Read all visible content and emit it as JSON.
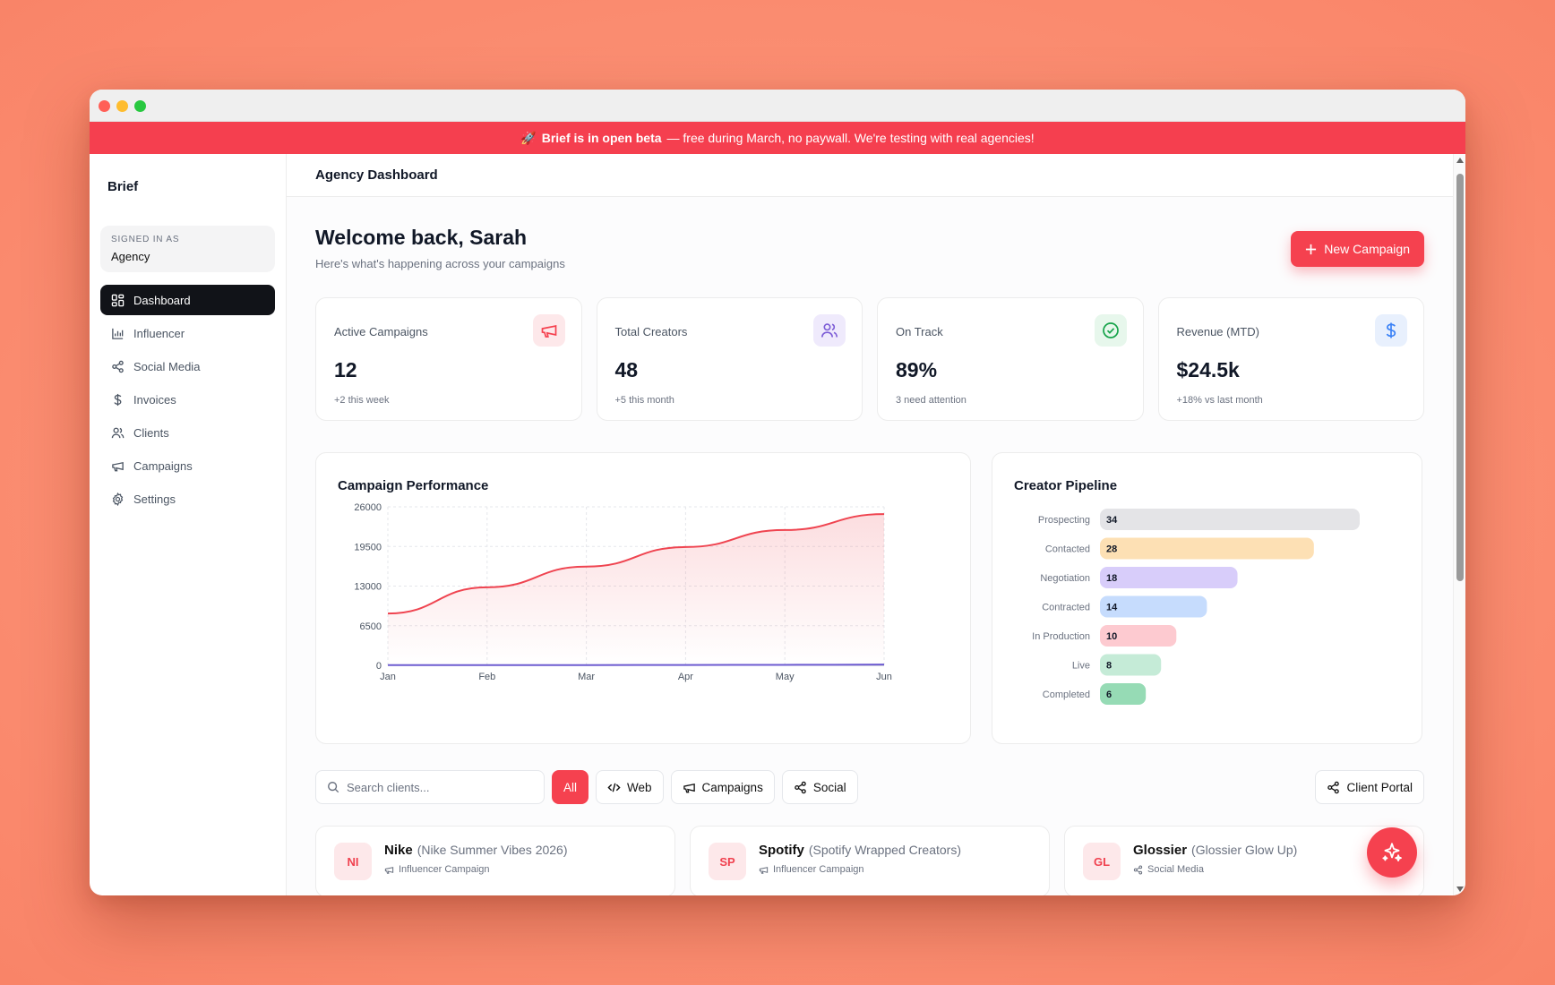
{
  "banner": {
    "icon": "rocket-icon",
    "emoji": "🚀",
    "bold": "Brief is in open beta",
    "rest": "— free during March, no paywall. We're testing with real agencies!"
  },
  "sidebar": {
    "brand": "Brief",
    "signed_caption": "SIGNED IN AS",
    "signed_role": "Agency",
    "items": [
      {
        "label": "Dashboard",
        "icon": "dashboard-icon",
        "active": true
      },
      {
        "label": "Influencer",
        "icon": "bar-chart-icon"
      },
      {
        "label": "Social Media",
        "icon": "share-icon"
      },
      {
        "label": "Invoices",
        "icon": "dollar-icon"
      },
      {
        "label": "Clients",
        "icon": "users-icon"
      },
      {
        "label": "Campaigns",
        "icon": "megaphone-icon"
      },
      {
        "label": "Settings",
        "icon": "gear-icon"
      }
    ]
  },
  "header": {
    "title": "Agency Dashboard"
  },
  "welcome": {
    "title": "Welcome back, Sarah",
    "subtitle": "Here's what's happening across your campaigns",
    "new_button": "New Campaign"
  },
  "stats": [
    {
      "label": "Active Campaigns",
      "value": "12",
      "sub": "+2 this week",
      "icon": "megaphone-icon",
      "color": "#f5414f",
      "bg": "#fde8ea"
    },
    {
      "label": "Total Creators",
      "value": "48",
      "sub": "+5 this month",
      "icon": "users-icon",
      "color": "#7c5cd6",
      "bg": "#efeafc"
    },
    {
      "label": "On Track",
      "value": "89%",
      "sub": "3 need attention",
      "icon": "check-circle-icon",
      "color": "#16a34a",
      "bg": "#e7f7ec"
    },
    {
      "label": "Revenue (MTD)",
      "value": "$24.5k",
      "sub": "+18% vs last month",
      "icon": "dollar-icon",
      "color": "#3b82f6",
      "bg": "#e8f0fd"
    }
  ],
  "performance": {
    "title": "Campaign Performance"
  },
  "pipeline": {
    "title": "Creator Pipeline"
  },
  "chart_data": [
    {
      "type": "area",
      "title": "Campaign Performance",
      "categories": [
        "Jan",
        "Feb",
        "Mar",
        "Apr",
        "May",
        "Jun"
      ],
      "yticks": [
        0,
        6500,
        13000,
        19500,
        26000
      ],
      "ylim": [
        0,
        26000
      ],
      "grid": true,
      "series": [
        {
          "values": [
            8500,
            12800,
            16200,
            19400,
            22200,
            24800
          ],
          "color": "#ef4450"
        },
        {
          "values": [
            30,
            40,
            45,
            60,
            80,
            120
          ],
          "color": "#6d5bd0"
        }
      ]
    },
    {
      "type": "bar",
      "title": "Creator Pipeline",
      "categories": [
        "Prospecting",
        "Contacted",
        "Negotiation",
        "Contracted",
        "In Production",
        "Live",
        "Completed"
      ],
      "values": [
        34,
        28,
        18,
        14,
        10,
        8,
        6
      ],
      "colors": [
        "#e4e4e7",
        "#fde0b4",
        "#d8cdfa",
        "#c6dcfd",
        "#fdcad0",
        "#c5ebd7",
        "#96dbb5"
      ]
    }
  ],
  "filters": {
    "search_placeholder": "Search clients...",
    "all": "All",
    "web": "Web",
    "campaigns": "Campaigns",
    "social": "Social",
    "portal": "Client Portal"
  },
  "clients": [
    {
      "initials": "NI",
      "name": "Nike",
      "project": "(Nike Summer Vibes 2026)",
      "type": "Influencer Campaign",
      "icon": "megaphone-icon"
    },
    {
      "initials": "SP",
      "name": "Spotify",
      "project": "(Spotify Wrapped Creators)",
      "type": "Influencer Campaign",
      "icon": "megaphone-icon"
    },
    {
      "initials": "GL",
      "name": "Glossier",
      "project": "(Glossier Glow Up)",
      "type": "Social Media",
      "icon": "share-icon"
    }
  ],
  "fab": {
    "icon": "sparkle-icon"
  }
}
